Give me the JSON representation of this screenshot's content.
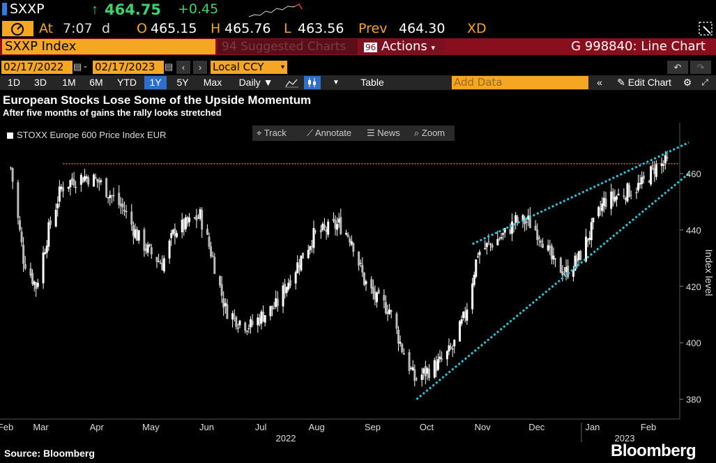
{
  "header": {
    "ticker": "SXXP",
    "last": "464.75",
    "change": "+0.45",
    "at_label": "At",
    "time": "7:07",
    "time_suffix": "d",
    "open_label": "O",
    "open": "465.15",
    "high_label": "H",
    "high": "465.76",
    "low_label": "L",
    "low": "463.56",
    "prev_label": "Prev",
    "prev": "464.30",
    "xd": "XD"
  },
  "bar": {
    "index": "SXXP Index",
    "suggested_num": "94",
    "suggested": "Suggested Charts",
    "actions_num": "96",
    "actions": "Actions",
    "chart_id": "G 998840: Line Chart"
  },
  "controls": {
    "start_date": "02/17/2022",
    "end_date": "02/17/2023",
    "dash": "-",
    "currency": "Local CCY",
    "periods": [
      "1D",
      "3D",
      "1M",
      "6M",
      "YTD",
      "1Y",
      "5Y",
      "Max"
    ],
    "selected_period": "1Y",
    "frequency": "Daily",
    "table": "Table",
    "add_data_placeholder": "Add Data",
    "edit_chart": "Edit Chart"
  },
  "tools": {
    "track": "Track",
    "annotate": "Annotate",
    "news": "News",
    "zoom": "Zoom"
  },
  "footer": {
    "source": "Source: Bloomberg",
    "brand": "Bloomberg"
  },
  "colors": {
    "orange": "#f5a623",
    "green": "#3fd26b",
    "bar_red": "#8a0f1e",
    "trend": "#2ec4d6",
    "resistance": "#e06060"
  },
  "chart_data": {
    "type": "candlestick",
    "title": "European Stocks Lose Some of the Upside Momentum",
    "subtitle": "After five months of gains the rally looks stretched",
    "legend": [
      "STOXX Europe 600 Price Index EUR"
    ],
    "ylabel": "Index level",
    "ylim": [
      373,
      478
    ],
    "y_ticks": [
      380,
      400,
      420,
      440,
      460
    ],
    "x_months": [
      "Feb",
      "Mar",
      "Apr",
      "May",
      "Jun",
      "Jul",
      "Aug",
      "Sep",
      "Oct",
      "Nov",
      "Dec",
      "Jan",
      "Feb"
    ],
    "x_years": [
      "2022",
      "2023"
    ],
    "series": [
      {
        "name": "STOXX Europe 600 Price Index EUR",
        "x": [
          "2022-02-17",
          "2022-02-24",
          "2022-03-03",
          "2022-03-10",
          "2022-03-17",
          "2022-03-24",
          "2022-03-31",
          "2022-04-07",
          "2022-04-14",
          "2022-04-21",
          "2022-04-28",
          "2022-05-05",
          "2022-05-12",
          "2022-05-19",
          "2022-05-26",
          "2022-06-02",
          "2022-06-09",
          "2022-06-16",
          "2022-06-23",
          "2022-06-30",
          "2022-07-07",
          "2022-07-14",
          "2022-07-21",
          "2022-07-28",
          "2022-08-04",
          "2022-08-11",
          "2022-08-18",
          "2022-08-25",
          "2022-09-01",
          "2022-09-08",
          "2022-09-15",
          "2022-09-22",
          "2022-09-29",
          "2022-10-06",
          "2022-10-13",
          "2022-10-20",
          "2022-10-27",
          "2022-11-03",
          "2022-11-10",
          "2022-11-17",
          "2022-11-24",
          "2022-12-01",
          "2022-12-08",
          "2022-12-15",
          "2022-12-22",
          "2022-12-29",
          "2023-01-05",
          "2023-01-12",
          "2023-01-19",
          "2023-01-26",
          "2023-02-02",
          "2023-02-09",
          "2023-02-16"
        ],
        "values": [
          462,
          430,
          420,
          440,
          455,
          458,
          459,
          457,
          452,
          447,
          438,
          432,
          428,
          440,
          442,
          445,
          430,
          412,
          408,
          406,
          410,
          413,
          422,
          430,
          438,
          440,
          442,
          437,
          422,
          415,
          412,
          398,
          387,
          390,
          393,
          398,
          410,
          432,
          435,
          438,
          443,
          443,
          438,
          428,
          425,
          430,
          440,
          450,
          452,
          454,
          456,
          462,
          464
        ]
      }
    ],
    "trendlines": [
      {
        "name": "upper",
        "from": [
          "2022-10-31",
          435
        ],
        "to": [
          "2023-02-28",
          471
        ]
      },
      {
        "name": "lower",
        "from": [
          "2022-09-30",
          380
        ],
        "to": [
          "2023-02-28",
          460
        ]
      }
    ],
    "resistance": 463.5
  }
}
